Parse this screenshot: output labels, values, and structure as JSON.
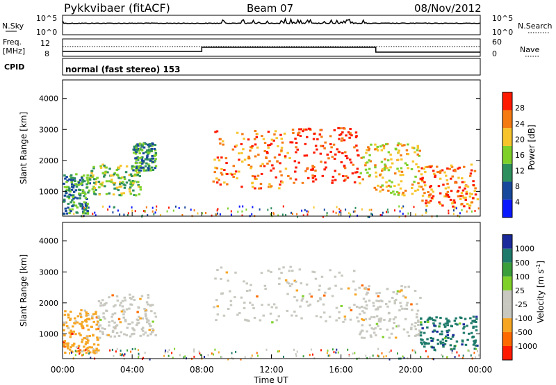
{
  "header": {
    "station": "Pykkvibaer (fitACF)",
    "beam": "Beam 07",
    "date": "08/Nov/2012"
  },
  "top_panel": {
    "left_label_1": "N.Sky",
    "left_ticks_1": [
      "10^5",
      "10^0"
    ],
    "right_label_1": "N.Search",
    "right_ticks_1": [
      "10^5",
      "10^0"
    ],
    "left_label_2a": "Freq.",
    "left_label_2b": "[MHz]",
    "left_ticks_2": [
      "12",
      "8"
    ],
    "right_label_2": "Nave",
    "right_ticks_2": [
      "60",
      "0"
    ],
    "cpid_label": "CPID",
    "cpid_text": "normal (fast stereo) 153"
  },
  "chart_data": [
    {
      "type": "heatmap",
      "ylabel": "Slant Range [km]",
      "ylim": [
        200,
        4600
      ],
      "yticks": [
        1000,
        2000,
        3000,
        4000
      ],
      "xlim_hours": [
        0,
        24
      ],
      "colorbar": {
        "label": "Power [dB]",
        "ticks": [
          "4",
          "8",
          "12",
          "16",
          "20",
          "24",
          "28"
        ],
        "colors": [
          "#0a18ff",
          "#17489c",
          "#2e8f5e",
          "#7fd12a",
          "#f7c52b",
          "#f57a12",
          "#ff1a00"
        ]
      },
      "regions": [
        {
          "t": [
            0.0,
            1.5
          ],
          "r": [
            300,
            1600
          ],
          "level": 2
        },
        {
          "t": [
            1.5,
            4.5
          ],
          "r": [
            900,
            1900
          ],
          "level": 3
        },
        {
          "t": [
            4.0,
            5.3
          ],
          "r": [
            1700,
            2600
          ],
          "level": 2
        },
        {
          "t": [
            8.6,
            13.0
          ],
          "r": [
            1100,
            3000
          ],
          "level": 5
        },
        {
          "t": [
            13.0,
            17.0
          ],
          "r": [
            1300,
            3100
          ],
          "level": 6
        },
        {
          "t": [
            17.0,
            20.5
          ],
          "r": [
            900,
            2600
          ],
          "level": 4
        },
        {
          "t": [
            20.5,
            23.8
          ],
          "r": [
            500,
            1900
          ],
          "level": 5
        }
      ]
    },
    {
      "type": "heatmap",
      "ylabel": "Slant Range [km]",
      "ylim": [
        200,
        4600
      ],
      "yticks": [
        1000,
        2000,
        3000,
        4000
      ],
      "xlim_hours": [
        0,
        24
      ],
      "colorbar": {
        "label": "Velocity [m s",
        "label_sup": "-1",
        "label_end": "]",
        "ticks": [
          "-1000",
          "-500",
          "-100",
          "-25",
          "25",
          "100",
          "500",
          "1000"
        ],
        "colors": [
          "#ff1a00",
          "#ff6a00",
          "#f6a623",
          "#c8c8c0",
          "#c8c8c0",
          "#7fd12a",
          "#3a9e3a",
          "#1e7a6a",
          "#1a2a9a"
        ]
      },
      "regions": [
        {
          "t": [
            0.0,
            2.0
          ],
          "r": [
            400,
            1800
          ],
          "color_index": 2
        },
        {
          "t": [
            2.0,
            5.3
          ],
          "r": [
            900,
            2300
          ],
          "color_index": 3
        },
        {
          "t": [
            8.6,
            17.0
          ],
          "r": [
            1400,
            3200
          ],
          "color_index": 3
        },
        {
          "t": [
            17.0,
            20.5
          ],
          "r": [
            900,
            2600
          ],
          "color_index": 3
        },
        {
          "t": [
            20.5,
            23.8
          ],
          "r": [
            500,
            1600
          ],
          "color_index": 7
        }
      ]
    }
  ],
  "x_axis": {
    "ticks": [
      "00:00",
      "04:00",
      "08:00",
      "12:00",
      "16:00",
      "20:00",
      "00:00"
    ],
    "label": "Time UT"
  }
}
